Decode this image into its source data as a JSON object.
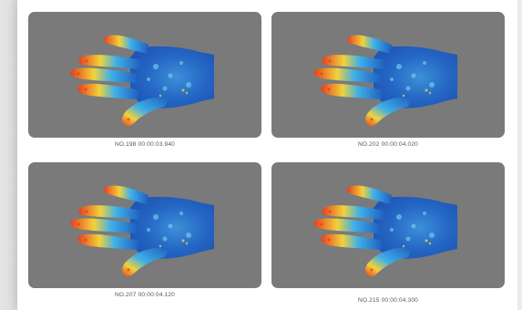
{
  "frames": [
    {
      "caption": "NO.198  00:00:03.940"
    },
    {
      "caption": "NO.202  00:00:04.020"
    },
    {
      "caption": "NO.207  00:00:04.120"
    },
    {
      "caption": "NO.215  00:00:04.300"
    }
  ],
  "colors": {
    "tile_background": "#7a7a7b",
    "hand_cool": "#1f5fbf",
    "hand_mid": "#3fb0e8",
    "hand_warm": "#f2d23a",
    "hand_hot": "#e5401f"
  }
}
